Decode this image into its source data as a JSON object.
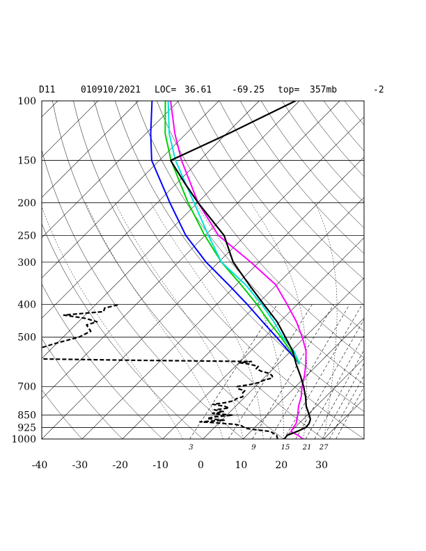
{
  "header": {
    "station": "D11",
    "datetime": "010910/2021",
    "loc_label": "LOC=",
    "lat": "36.61",
    "lon": "-69.25",
    "top_label": "top=",
    "top_value": "357mb",
    "extra": "-2"
  },
  "chart_data": {
    "type": "line",
    "title": "D11  010910/2021 LOC= 36.61  -69.25  top= 357mb  -2",
    "diagram": "skew-T log-p",
    "xlabel": "",
    "ylabel": "",
    "pressure_range_mb": [
      1000,
      100
    ],
    "temp_axis_at_1000mb": [
      -40,
      40
    ],
    "pressure_levels": [
      1000,
      925,
      850,
      700,
      500,
      400,
      300,
      250,
      200,
      150,
      100
    ],
    "pressure_labels": [
      "1000",
      "925",
      "850",
      "700",
      "500",
      "400",
      "300",
      "250",
      "200",
      "150",
      "100"
    ],
    "temperature_ticks": [
      -40,
      -30,
      -20,
      -10,
      0,
      10,
      20,
      30
    ],
    "temperature_labels": [
      "-40",
      "-30",
      "-20",
      "-10",
      "0",
      "10",
      "20",
      "30"
    ],
    "mixing_ratio_labels": [
      "3",
      "9",
      "15",
      "21",
      "27"
    ],
    "series": [
      {
        "name": "temperature",
        "color": "#000000",
        "style": "solid",
        "p": [
          1000,
          975,
          950,
          925,
          900,
          875,
          850,
          800,
          750,
          700,
          650,
          600,
          550,
          500,
          450,
          400,
          350,
          300,
          250,
          200,
          175,
          150,
          125,
          100
        ],
        "t": [
          20.2,
          20.0,
          21.5,
          22.7,
          22.5,
          21.8,
          20.5,
          17.5,
          15.0,
          12.0,
          8.5,
          4.5,
          0.5,
          -4.8,
          -10.7,
          -18.3,
          -26.8,
          -36.4,
          -45.3,
          -59.9,
          -68.1,
          -77.2,
          -69.5,
          -61.0
        ]
      },
      {
        "name": "dewpoint",
        "color": "#000000",
        "style": "dashed",
        "p": [
          1000,
          975,
          950,
          940,
          930,
          925,
          920,
          915,
          905,
          900,
          895,
          890,
          880,
          870,
          860,
          850,
          840,
          830,
          820,
          810,
          800,
          790,
          780,
          770,
          760,
          750,
          740,
          730,
          720,
          710,
          700,
          690,
          680,
          670,
          660,
          650,
          640,
          630,
          620,
          610,
          600,
          595,
          590,
          585,
          580,
          570,
          560,
          550,
          540,
          520,
          500,
          480,
          460,
          450,
          440,
          430,
          420,
          410,
          400
        ],
        "t": [
          18.5,
          17.4,
          14.9,
          11.1,
          8.0,
          7.5,
          6.8,
          6.5,
          4.4,
          1.5,
          -0.9,
          -5.0,
          0.6,
          -4.0,
          -2.7,
          1.5,
          -4.0,
          -1.7,
          -4.4,
          -1.2,
          -2.8,
          -6.1,
          -3.4,
          -1.7,
          -1.7,
          -0.6,
          -1.0,
          -1.6,
          -1.6,
          -3.8,
          -4.5,
          -1.8,
          0.0,
          0.5,
          2.1,
          1.5,
          0.2,
          -2.4,
          -4.2,
          -4.3,
          -7.2,
          -9.8,
          -7.2,
          -37.6,
          -59.1,
          -62.7,
          -63.6,
          -64.2,
          -63.2,
          -60.1,
          -56.1,
          -54.6,
          -57.2,
          -55.4,
          -59.0,
          -65.3,
          -56.3,
          -56.9,
          -54.1
        ]
      },
      {
        "name": "magenta",
        "color": "#ff00ff",
        "style": "solid",
        "p": [
          1000,
          975,
          950,
          925,
          900,
          850,
          800,
          750,
          700,
          650,
          600,
          550,
          500,
          450,
          400,
          350,
          300,
          250,
          200,
          150,
          125,
          100
        ],
        "t": [
          24.8,
          22.7,
          20.0,
          19.6,
          19.3,
          17.6,
          15.6,
          13.9,
          11.6,
          9.5,
          6.9,
          3.8,
          -0.6,
          -5.9,
          -12.5,
          -20.2,
          -32.0,
          -46.7,
          -59.9,
          -74.5,
          -82.8,
          -92.0
        ]
      },
      {
        "name": "cyan",
        "color": "#00e0e0",
        "style": "solid",
        "p": [
          600,
          550,
          500,
          450,
          400,
          350,
          300,
          250,
          200,
          150,
          125,
          100
        ],
        "t": [
          5.4,
          0.8,
          -5.4,
          -11.5,
          -18.8,
          -27.7,
          -39.3,
          -49.2,
          -60.9,
          -76.0,
          -84.2,
          -92.6
        ]
      },
      {
        "name": "green",
        "color": "#00d000",
        "style": "solid",
        "p": [
          600,
          550,
          500,
          450,
          400,
          350,
          300,
          250,
          200,
          150,
          125,
          100
        ],
        "t": [
          5.4,
          0.0,
          -5.9,
          -12.7,
          -20.0,
          -28.8,
          -39.3,
          -50.1,
          -62.4,
          -77.1,
          -85.2,
          -93.3
        ]
      },
      {
        "name": "blue",
        "color": "#0000ff",
        "style": "solid",
        "p": [
          600,
          550,
          500,
          450,
          400,
          350,
          300,
          250,
          200,
          150,
          125,
          100
        ],
        "t": [
          5.4,
          -0.5,
          -7.0,
          -14.3,
          -22.4,
          -31.9,
          -43.1,
          -54.8,
          -66.9,
          -81.9,
          -88.8,
          -96.6
        ]
      }
    ]
  }
}
